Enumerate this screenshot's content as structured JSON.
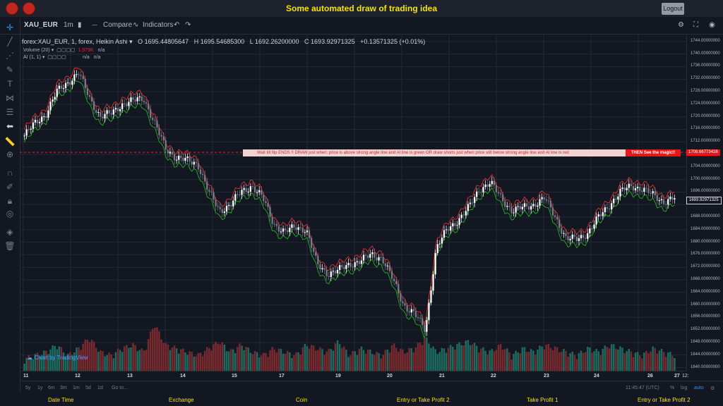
{
  "header": {
    "title": "Some automated draw of trading idea",
    "logout_label": "Logout"
  },
  "toolbar": {
    "symbol": "XAU_EUR",
    "interval": "1m",
    "compare_label": "Compare",
    "indicators_label": "Indicators"
  },
  "legend": {
    "symbol_line": "forex:XAU_EUR, 1, forex, Heikin Ashi",
    "open": "O 1695.44805647",
    "high": "H 1695.54685300",
    "low": "L 1692.26200000",
    "close": "C 1693.92971325",
    "change": "+0.13571325 (+0.01%)",
    "volume_label": "Volume (20)",
    "volume_value": "1.979K",
    "volume_na": "n/a",
    "ai_label": "AI (1, 1)",
    "ai_na1": "n/a",
    "ai_na2": "n/a"
  },
  "banner": {
    "text": "Wait till flip ENDS !!    DRAW just when:  price is above strong angle line and AI line is green        OR        draw shorts just when price still below strong angle line and AI line is red",
    "end_text": "THEN See the magic!!"
  },
  "price_tags": {
    "upper": "1708.66773428",
    "current": "1693.92971325"
  },
  "price_axis": [
    "1744.00000000",
    "1740.00000000",
    "1736.00000000",
    "1732.00000000",
    "1728.00000000",
    "1724.00000000",
    "1720.00000000",
    "1716.00000000",
    "1712.00000000",
    "1704.00000000",
    "1700.00000000",
    "1696.00000000",
    "1688.00000000",
    "1684.00000000",
    "1680.00000000",
    "1676.00000000",
    "1672.00000000",
    "1668.00000000",
    "1664.00000000",
    "1660.00000000",
    "1656.00000000",
    "1652.00000000",
    "1648.00000000",
    "1644.00000000",
    "1640.00000000"
  ],
  "time_axis": [
    "11",
    "12",
    "13",
    "14",
    "15",
    "17",
    "19",
    "20",
    "21",
    "22",
    "23",
    "24",
    "26",
    "27",
    "12:"
  ],
  "range_buttons": [
    "5y",
    "1y",
    "6m",
    "3m",
    "1m",
    "5d",
    "1d",
    "Go to..."
  ],
  "status": {
    "time": "11:45:47 (UTC)",
    "percent": "%",
    "log": "log",
    "auto": "auto"
  },
  "watermark": "Chart by TradingView",
  "bottom_nav": [
    "Date Time",
    "Exchange",
    "Coin",
    "Entry or Take Profit 2",
    "Take Profit 1",
    "Entry or Take Profit 2"
  ],
  "chart_data": {
    "type": "candlestick",
    "ylim": [
      1639,
      1746
    ],
    "x": [
      "11",
      "12",
      "13",
      "14",
      "15",
      "17",
      "19",
      "20",
      "21",
      "22",
      "23",
      "24",
      "26",
      "27"
    ],
    "close_path": [
      1714,
      1718,
      1721,
      1728,
      1731,
      1734,
      1726,
      1720,
      1721,
      1724,
      1725,
      1726,
      1718,
      1710,
      1707,
      1706,
      1705,
      1696,
      1690,
      1692,
      1696,
      1698,
      1694,
      1686,
      1683,
      1685,
      1684,
      1673,
      1670,
      1671,
      1673,
      1674,
      1676,
      1675,
      1668,
      1660,
      1657,
      1652,
      1678,
      1684,
      1687,
      1691,
      1697,
      1699,
      1694,
      1690,
      1691,
      1692,
      1694,
      1688,
      1681,
      1681,
      1683,
      1688,
      1692,
      1696,
      1698,
      1697,
      1695,
      1693,
      1694
    ],
    "volume_path": [
      2,
      3,
      4,
      6,
      3,
      5,
      8,
      4,
      3,
      5,
      6,
      4,
      12,
      6,
      5,
      4,
      3,
      5,
      7,
      4,
      6,
      4,
      3,
      5,
      4,
      3,
      6,
      5,
      4,
      7,
      3,
      5,
      4,
      3,
      6,
      4,
      5,
      8,
      4,
      5,
      6,
      7,
      5,
      4,
      6,
      3,
      5,
      4,
      6,
      5,
      4,
      3,
      5,
      4,
      6,
      5,
      4,
      3,
      5,
      4,
      3
    ],
    "series": [
      {
        "name": "Volume (20)",
        "color": "#26a69a"
      },
      {
        "name": "AI (1, 1)",
        "color": "#d32f2f"
      }
    ],
    "colors": {
      "up": "#ffffff",
      "down": "#787b86",
      "line_green": "#1fa31f",
      "line_red": "#d32f2f",
      "vol_up": "#1d6b5f",
      "vol_down": "#7a2a2e"
    }
  }
}
